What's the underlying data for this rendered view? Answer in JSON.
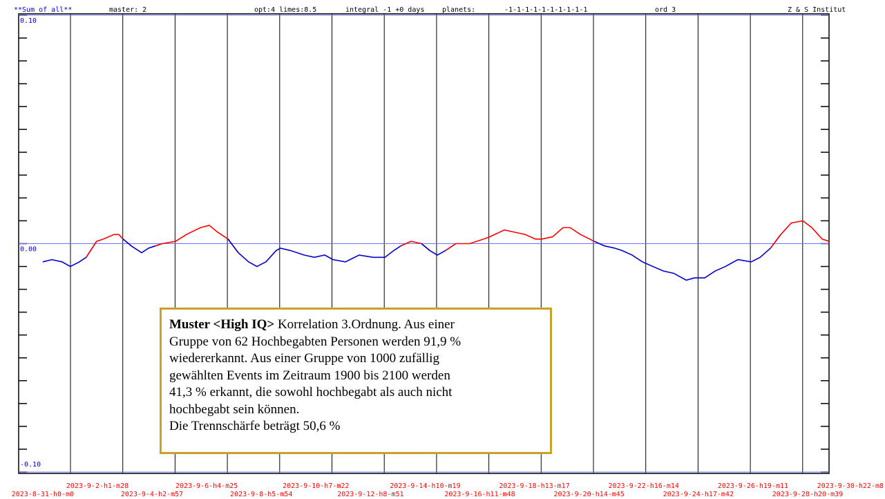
{
  "chart_data": {
    "type": "line",
    "header": [
      "**Sum of all**",
      "master: 2",
      "opt:4 limes:8.5",
      "integral -1 +0 days",
      "planets:",
      "-1-1-1-1-1-1-1-1-1-1",
      "ord 3",
      "Z & S Institut"
    ],
    "header_color": "#0000cc",
    "x": [
      0,
      0.34,
      0.73,
      1.04,
      1.38,
      1.64,
      2.03,
      2.29,
      2.69,
      2.87,
      3.03,
      3.34,
      3.73,
      3.99,
      4.25,
      4.51,
      5.01,
      5.42,
      5.95,
      6.28,
      6.6,
      6.99,
      7.38,
      7.77,
      8.08,
      8.42,
      8.81,
      8.97,
      9.34,
      9.86,
      10.25,
      10.64,
      10.95,
      11.42,
      11.94,
      12.46,
      12.91,
      13.25,
      13.51,
      13.9,
      14.29,
      14.6,
      14.89,
      15.2,
      15.59,
      16.11,
      16.64,
      16.87,
      17.42,
      17.81,
      18.2,
      18.59,
      18.83,
      19.24,
      19.63,
      19.9,
      20.29,
      20.81,
      21.2,
      21.59,
      21.85,
      22.24,
      22.63,
      23.02,
      23.42,
      23.81,
      24.28,
      24.59,
      24.98,
      25.37,
      25.76,
      26.23,
      26.73,
      27.07,
      27.46,
      27.85,
      28.24,
      28.68,
      29.02,
      29.41,
      29.67
    ],
    "values": [
      -0.008,
      -0.007,
      -0.008,
      -0.01,
      -0.008,
      -0.006,
      0.001,
      0.002,
      0.004,
      0.004,
      0.002,
      -0.001,
      -0.004,
      -0.002,
      -0.001,
      0,
      0.001,
      0.004,
      0.007,
      0.008,
      0.005,
      0.002,
      -0.004,
      -0.008,
      -0.01,
      -0.008,
      -0.003,
      -0.002,
      -0.003,
      -0.005,
      -0.006,
      -0.005,
      -0.007,
      -0.008,
      -0.005,
      -0.006,
      -0.006,
      -0.003,
      -0.001,
      0.001,
      0,
      -0.003,
      -0.005,
      -0.003,
      0,
      0,
      0.002,
      0.003,
      0.006,
      0.005,
      0.004,
      0.002,
      0.002,
      0.003,
      0.007,
      0.007,
      0.004,
      0.001,
      -0.001,
      -0.002,
      -0.003,
      -0.005,
      -0.008,
      -0.01,
      -0.012,
      -0.013,
      -0.016,
      -0.015,
      -0.015,
      -0.012,
      -0.01,
      -0.007,
      -0.008,
      -0.006,
      -0.002,
      0.004,
      0.009,
      0.01,
      0.007,
      0.002,
      0.001
    ],
    "color_positive": "#ff0000",
    "color_negative": "#0000cc",
    "xlim": [
      -0.91,
      29.67
    ],
    "xticks": [
      {
        "value": 0,
        "label": "2023-8-31-h0-m0"
      },
      {
        "value": 2.061,
        "label": "2023-9-2-h1-m28"
      },
      {
        "value": 4.123,
        "label": "2023-9-4-h2-m57"
      },
      {
        "value": 6.184,
        "label": "2023-9-6-h4-m25"
      },
      {
        "value": 8.246,
        "label": "2023-9-8-h5-m54"
      },
      {
        "value": 10.307,
        "label": "2023-9-10-h7-m22"
      },
      {
        "value": 12.369,
        "label": "2023-9-12-h8-m51"
      },
      {
        "value": 14.43,
        "label": "2023-9-14-h10-m19"
      },
      {
        "value": 16.492,
        "label": "2023-9-16-h11-m48"
      },
      {
        "value": 18.553,
        "label": "2023-9-18-h13-m17"
      },
      {
        "value": 20.615,
        "label": "2023-9-20-h14-m45"
      },
      {
        "value": 22.676,
        "label": "2023-9-22-h16-m14"
      },
      {
        "value": 24.738,
        "label": "2023-9-24-h17-m42"
      },
      {
        "value": 26.799,
        "label": "2023-9-26-h19-m11"
      },
      {
        "value": 28.861,
        "label": "2023-9-28-h20-m39"
      },
      {
        "value": 30.922,
        "label": "2023-9-30-h22-m8"
      }
    ],
    "xtick_color": "#ff0000",
    "ylim": [
      -0.1,
      0.1
    ],
    "yticks": [
      {
        "value": 0.1,
        "label": "0.10"
      },
      {
        "value": 0,
        "label": "0.00"
      },
      {
        "value": -0.1,
        "label": "-0.10"
      }
    ],
    "ytick_color": "#0000cc",
    "note": {
      "title": "Muster <High IQ>",
      "lines": [
        "Korrelation 3.Ordnung. Aus einer",
        "Gruppe von 62 Hochbegabten Personen werden 91,9 %",
        "wiedererkannt. Aus einer Gruppe von 1000 zufällig",
        "gewählten Events im Zeitraum 1900 bis 2100 werden",
        "41,3 % erkannt, die sowohl hochbegabt als auch nicht",
        "hochbegabt sein können.",
        "Die Trennschärfe beträgt 50,6 %"
      ]
    }
  }
}
